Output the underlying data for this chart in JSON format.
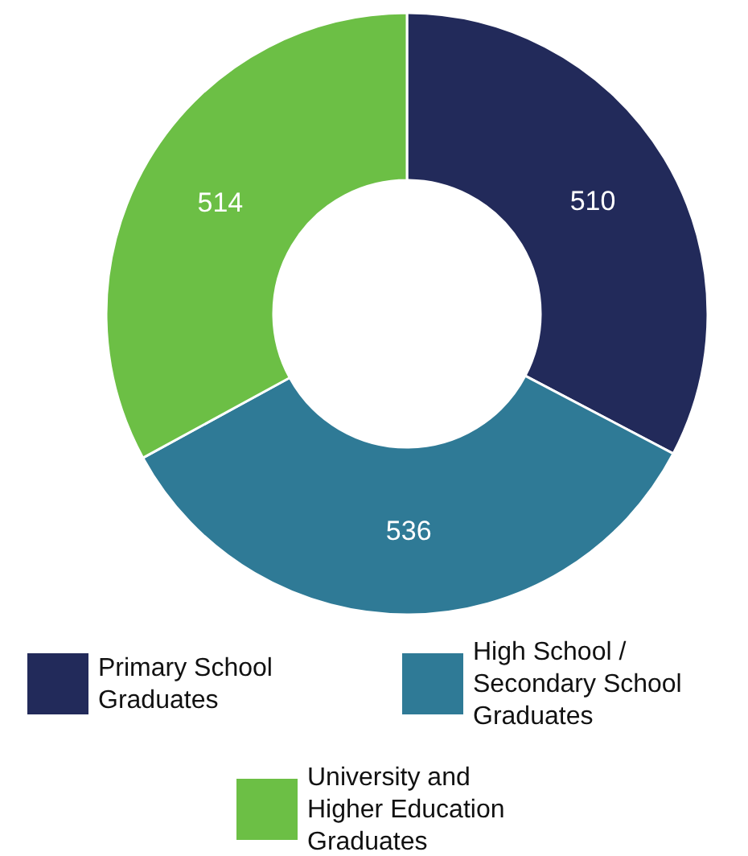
{
  "chart_data": {
    "type": "donut",
    "categories": [
      "Primary School Graduates",
      "High School / Secondary School Graduates",
      "University and Higher Education Graduates"
    ],
    "values": [
      510,
      536,
      514
    ],
    "colors": [
      "#222a5a",
      "#2f7a96",
      "#6cbf45"
    ],
    "data_labels": true,
    "legend": "bottom"
  }
}
